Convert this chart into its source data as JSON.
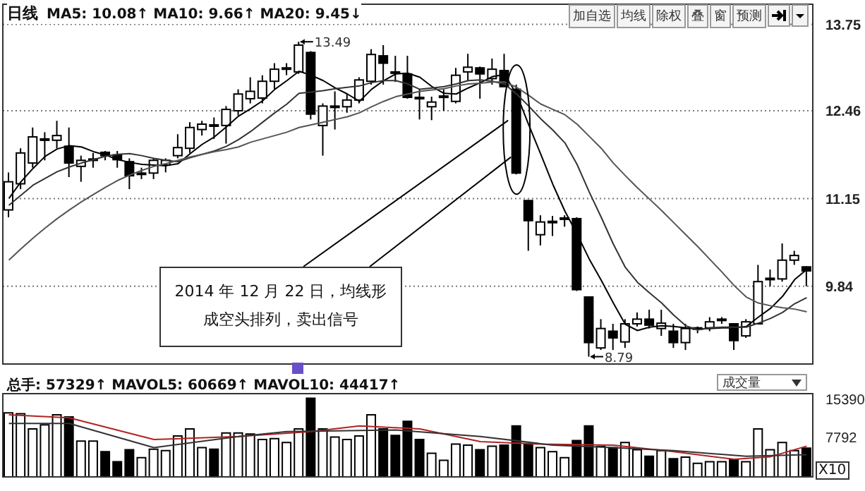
{
  "chart_data": [
    {
      "type": "candlestick",
      "title": "日线",
      "subtitle": "MA5: 10.08↑ MA10: 9.66↑ MA20: 9.45↓",
      "categories": [
        null,
        null,
        null,
        null,
        null,
        null,
        null,
        null,
        null,
        null,
        null,
        null,
        null,
        null,
        null,
        null,
        null,
        null,
        null,
        null,
        null,
        null,
        null,
        null,
        null,
        null,
        null,
        null,
        null,
        null,
        null,
        null,
        null,
        null,
        null,
        null,
        null,
        null,
        null,
        null,
        null,
        null,
        null,
        null,
        null,
        null,
        null,
        null,
        null,
        null,
        null,
        null,
        null,
        null,
        null,
        null,
        null,
        null,
        null,
        null,
        null,
        null,
        null,
        null,
        null,
        null,
        null
      ],
      "ohlc": [
        [
          10.98,
          11.54,
          10.87,
          11.4
        ],
        [
          11.37,
          11.9,
          11.29,
          11.83
        ],
        [
          11.68,
          12.21,
          11.61,
          12.07
        ],
        [
          12.02,
          12.14,
          11.72,
          12.04
        ],
        [
          12.02,
          12.31,
          11.9,
          12.09
        ],
        [
          11.93,
          12.21,
          11.47,
          11.68
        ],
        [
          11.63,
          11.79,
          11.4,
          11.72
        ],
        [
          11.73,
          11.83,
          11.61,
          11.74
        ],
        [
          11.84,
          11.86,
          11.72,
          11.79
        ],
        [
          11.8,
          11.86,
          11.61,
          11.73
        ],
        [
          11.7,
          11.75,
          11.29,
          11.49
        ],
        [
          11.52,
          11.61,
          11.44,
          11.53
        ],
        [
          11.53,
          11.75,
          11.44,
          11.72
        ],
        [
          11.65,
          11.75,
          11.54,
          11.72
        ],
        [
          11.79,
          12.11,
          11.75,
          11.91
        ],
        [
          11.9,
          12.29,
          11.83,
          12.21
        ],
        [
          12.18,
          12.31,
          12.09,
          12.26
        ],
        [
          12.25,
          12.36,
          12.04,
          12.23
        ],
        [
          12.24,
          12.53,
          11.97,
          12.48
        ],
        [
          12.46,
          12.78,
          12.39,
          12.71
        ],
        [
          12.64,
          12.96,
          12.57,
          12.75
        ],
        [
          12.65,
          12.99,
          12.57,
          12.9
        ],
        [
          12.9,
          13.17,
          12.78,
          13.08
        ],
        [
          13.09,
          13.17,
          12.99,
          13.1
        ],
        [
          13.04,
          13.49,
          13.01,
          13.44
        ],
        [
          13.33,
          13.35,
          12.33,
          12.41
        ],
        [
          12.24,
          12.57,
          11.79,
          12.53
        ],
        [
          12.52,
          12.75,
          12.18,
          12.53
        ],
        [
          12.52,
          12.71,
          12.43,
          12.62
        ],
        [
          12.62,
          12.96,
          12.57,
          12.92
        ],
        [
          12.9,
          13.38,
          12.85,
          13.3
        ],
        [
          13.28,
          13.44,
          12.85,
          13.17
        ],
        [
          13.04,
          13.28,
          12.89,
          13.03
        ],
        [
          13.01,
          13.28,
          12.64,
          12.66
        ],
        [
          12.66,
          12.78,
          12.33,
          12.65
        ],
        [
          12.52,
          12.67,
          12.32,
          12.59
        ],
        [
          12.67,
          12.78,
          12.46,
          12.68
        ],
        [
          12.6,
          13.1,
          12.57,
          12.99
        ],
        [
          13.04,
          13.31,
          12.9,
          13.11
        ],
        [
          13.1,
          13.12,
          12.64,
          13.01
        ],
        [
          12.94,
          13.24,
          12.85,
          13.08
        ],
        [
          13.06,
          13.31,
          12.82,
          12.82
        ],
        [
          12.78,
          12.85,
          11.51,
          11.53
        ],
        [
          11.12,
          11.13,
          10.37,
          10.82
        ],
        [
          10.61,
          10.9,
          10.45,
          10.8
        ],
        [
          10.8,
          10.89,
          10.59,
          10.81
        ],
        [
          10.85,
          10.9,
          10.73,
          10.86
        ],
        [
          10.85,
          10.87,
          9.77,
          9.79
        ],
        [
          9.68,
          9.69,
          8.79,
          9.0
        ],
        [
          8.92,
          9.35,
          8.89,
          9.21
        ],
        [
          9.17,
          9.28,
          8.89,
          9.07
        ],
        [
          9.01,
          9.35,
          8.92,
          9.28
        ],
        [
          9.28,
          9.45,
          9.24,
          9.35
        ],
        [
          9.35,
          9.49,
          9.21,
          9.26
        ],
        [
          9.21,
          9.49,
          9.1,
          9.29
        ],
        [
          9.17,
          9.28,
          8.92,
          9.0
        ],
        [
          9.0,
          9.28,
          8.89,
          9.21
        ],
        [
          9.21,
          9.24,
          9.14,
          9.22
        ],
        [
          9.22,
          9.38,
          9.17,
          9.31
        ],
        [
          9.34,
          9.38,
          9.28,
          9.35
        ],
        [
          9.28,
          9.29,
          8.89,
          9.03
        ],
        [
          9.1,
          9.35,
          9.07,
          9.31
        ],
        [
          9.28,
          10.16,
          9.28,
          9.91
        ],
        [
          9.95,
          10.09,
          9.84,
          9.96
        ],
        [
          9.95,
          10.48,
          9.91,
          10.23
        ],
        [
          10.23,
          10.37,
          10.16,
          10.3
        ],
        [
          10.13,
          10.14,
          9.84,
          10.07
        ]
      ],
      "series": [
        {
          "type": "line",
          "color": "#000000",
          "values": [
            11.15,
            11.4,
            11.6,
            11.78,
            11.89,
            11.94,
            11.92,
            11.85,
            11.8,
            11.73,
            11.69,
            11.66,
            11.65,
            11.64,
            11.67,
            11.82,
            11.96,
            12.07,
            12.22,
            12.38,
            12.49,
            12.61,
            12.78,
            12.91,
            13.05,
            12.99,
            12.91,
            12.8,
            12.71,
            12.6,
            12.78,
            12.91,
            13.01,
            13.02,
            12.96,
            12.82,
            12.72,
            12.71,
            12.8,
            12.88,
            12.97,
            13.0,
            12.71,
            12.25,
            11.81,
            11.36,
            10.96,
            10.62,
            10.25,
            9.93,
            9.59,
            9.27,
            9.18,
            9.23,
            9.25,
            9.24,
            9.22,
            9.2,
            9.21,
            9.22,
            9.22,
            9.24,
            9.38,
            9.51,
            9.69,
            9.94,
            10.09
          ]
        },
        {
          "type": "line",
          "color": "#333333",
          "values": [
            11.05,
            11.2,
            11.35,
            11.45,
            11.55,
            11.62,
            11.68,
            11.73,
            11.78,
            11.81,
            11.82,
            11.79,
            11.75,
            11.72,
            11.7,
            11.76,
            11.81,
            11.86,
            11.93,
            12.03,
            12.15,
            12.29,
            12.43,
            12.56,
            12.72,
            12.74,
            12.76,
            12.79,
            12.81,
            12.83,
            12.88,
            12.91,
            12.91,
            12.86,
            12.78,
            12.8,
            12.82,
            12.86,
            12.91,
            12.92,
            12.9,
            12.86,
            12.71,
            12.53,
            12.34,
            12.17,
            11.98,
            11.66,
            11.25,
            10.87,
            10.47,
            10.12,
            9.9,
            9.74,
            9.59,
            9.41,
            9.25,
            9.19,
            9.22,
            9.23,
            9.23,
            9.23,
            9.29,
            9.36,
            9.45,
            9.58,
            9.67
          ]
        },
        {
          "type": "line",
          "color": "#555555",
          "values": [
            10.23,
            10.4,
            10.56,
            10.71,
            10.85,
            10.98,
            11.1,
            11.21,
            11.32,
            11.42,
            11.5,
            11.57,
            11.63,
            11.67,
            11.72,
            11.77,
            11.81,
            11.85,
            11.88,
            11.92,
            11.99,
            12.04,
            12.09,
            12.14,
            12.21,
            12.25,
            12.29,
            12.33,
            12.37,
            12.43,
            12.52,
            12.6,
            12.67,
            12.71,
            12.75,
            12.77,
            12.79,
            12.83,
            12.86,
            12.87,
            12.89,
            12.89,
            12.81,
            12.69,
            12.56,
            12.48,
            12.4,
            12.26,
            12.08,
            11.9,
            11.68,
            11.49,
            11.31,
            11.14,
            10.97,
            10.79,
            10.61,
            10.43,
            10.24,
            10.05,
            9.85,
            9.68,
            9.59,
            9.55,
            9.52,
            9.5,
            9.46
          ]
        }
      ],
      "ylim": [
        8.68,
        14.05
      ],
      "yticks": [
        13.75,
        12.46,
        11.15,
        9.84
      ],
      "grid": "y",
      "annotations": [
        "2014 年 12 月 22 日，均线形成空头排列，卖出信号",
        "加自选",
        "均线",
        "除权",
        "叠",
        "窗",
        "预测",
        "13.49",
        "8.79"
      ]
    },
    {
      "type": "bar",
      "title": "总手: 57329↑ MAVOL5: 60669↑ MAVOL10: 44417↑",
      "categories": [
        null,
        null,
        null,
        null,
        null,
        null,
        null,
        null,
        null,
        null,
        null,
        null,
        null,
        null,
        null,
        null,
        null,
        null,
        null,
        null,
        null,
        null,
        null,
        null,
        null,
        null,
        null,
        null,
        null,
        null,
        null,
        null,
        null,
        null,
        null,
        null,
        null,
        null,
        null,
        null,
        null,
        null,
        null,
        null,
        null,
        null,
        null,
        null,
        null,
        null,
        null,
        null,
        null,
        null,
        null,
        null,
        null,
        null,
        null,
        null,
        null,
        null,
        null,
        null,
        null,
        null,
        null
      ],
      "series": [
        {
          "type": "bar",
          "values": [
            12700,
            12500,
            9500,
            10300,
            12300,
            11900,
            7100,
            7100,
            5000,
            3000,
            5400,
            3800,
            5500,
            5200,
            8100,
            9500,
            5800,
            5500,
            8700,
            8700,
            8500,
            7400,
            7600,
            6800,
            9500,
            15600,
            9500,
            7900,
            7400,
            8100,
            12300,
            9500,
            8200,
            11000,
            7400,
            4700,
            3300,
            6500,
            6300,
            5400,
            6100,
            6300,
            10100,
            6500,
            5800,
            5000,
            3800,
            7200,
            10100,
            6000,
            5800,
            6800,
            5400,
            4100,
            5200,
            3600,
            3900,
            2700,
            3000,
            3000,
            3400,
            3000,
            9500,
            5400,
            6800,
            5200,
            5700
          ],
          "colors": [
            "#ffffff",
            "#ffffff",
            "#ffffff",
            "#ffffff",
            "#ffffff",
            "#000000",
            "#ffffff",
            "#ffffff",
            "#000000",
            "#000000",
            "#000000",
            "#ffffff",
            "#ffffff",
            "#ffffff",
            "#ffffff",
            "#ffffff",
            "#ffffff",
            "#000000",
            "#ffffff",
            "#ffffff",
            "#ffffff",
            "#ffffff",
            "#ffffff",
            "#ffffff",
            "#ffffff",
            "#000000",
            "#ffffff",
            "#ffffff",
            "#ffffff",
            "#ffffff",
            "#ffffff",
            "#000000",
            "#000000",
            "#000000",
            "#000000",
            "#ffffff",
            "#ffffff",
            "#ffffff",
            "#ffffff",
            "#000000",
            "#ffffff",
            "#000000",
            "#000000",
            "#000000",
            "#ffffff",
            "#ffffff",
            "#ffffff",
            "#000000",
            "#000000",
            "#ffffff",
            "#000000",
            "#ffffff",
            "#ffffff",
            "#000000",
            "#ffffff",
            "#000000",
            "#ffffff",
            "#ffffff",
            "#ffffff",
            "#ffffff",
            "#000000",
            "#ffffff",
            "#ffffff",
            "#ffffff",
            "#ffffff",
            "#ffffff",
            "#000000"
          ]
        },
        {
          "type": "line",
          "color": "#b22222",
          "values": [
            12300,
            null,
            null,
            null,
            null,
            11700,
            null,
            null,
            null,
            null,
            null,
            null,
            7400,
            null,
            null,
            null,
            null,
            null,
            null,
            8000,
            null,
            null,
            null,
            null,
            null,
            9000,
            null,
            null,
            null,
            10100,
            null,
            null,
            null,
            null,
            9500,
            null,
            null,
            null,
            null,
            7000,
            null,
            null,
            null,
            null,
            6500,
            null,
            null,
            null,
            null,
            null,
            6300,
            null,
            null,
            null,
            null,
            5000,
            null,
            null,
            null,
            null,
            3500,
            null,
            null,
            4000,
            null,
            null,
            6100
          ]
        },
        {
          "type": "line",
          "color": "#333333",
          "values": [
            10600,
            null,
            null,
            null,
            null,
            10600,
            null,
            null,
            null,
            null,
            null,
            null,
            5800,
            null,
            null,
            null,
            null,
            null,
            null,
            8000,
            null,
            null,
            null,
            9000,
            null,
            null,
            null,
            null,
            null,
            null,
            null,
            null,
            9300,
            null,
            null,
            null,
            null,
            null,
            null,
            8000,
            null,
            null,
            null,
            null,
            null,
            6300,
            null,
            null,
            null,
            null,
            5800,
            null,
            null,
            null,
            null,
            5200,
            null,
            null,
            null,
            null,
            null,
            4100,
            null,
            null,
            null,
            null,
            4400
          ]
        }
      ],
      "ylim": [
        0,
        16500
      ],
      "yticks": [
        15390,
        7792
      ],
      "annotations": [
        "成交量",
        "X10"
      ]
    }
  ]
}
